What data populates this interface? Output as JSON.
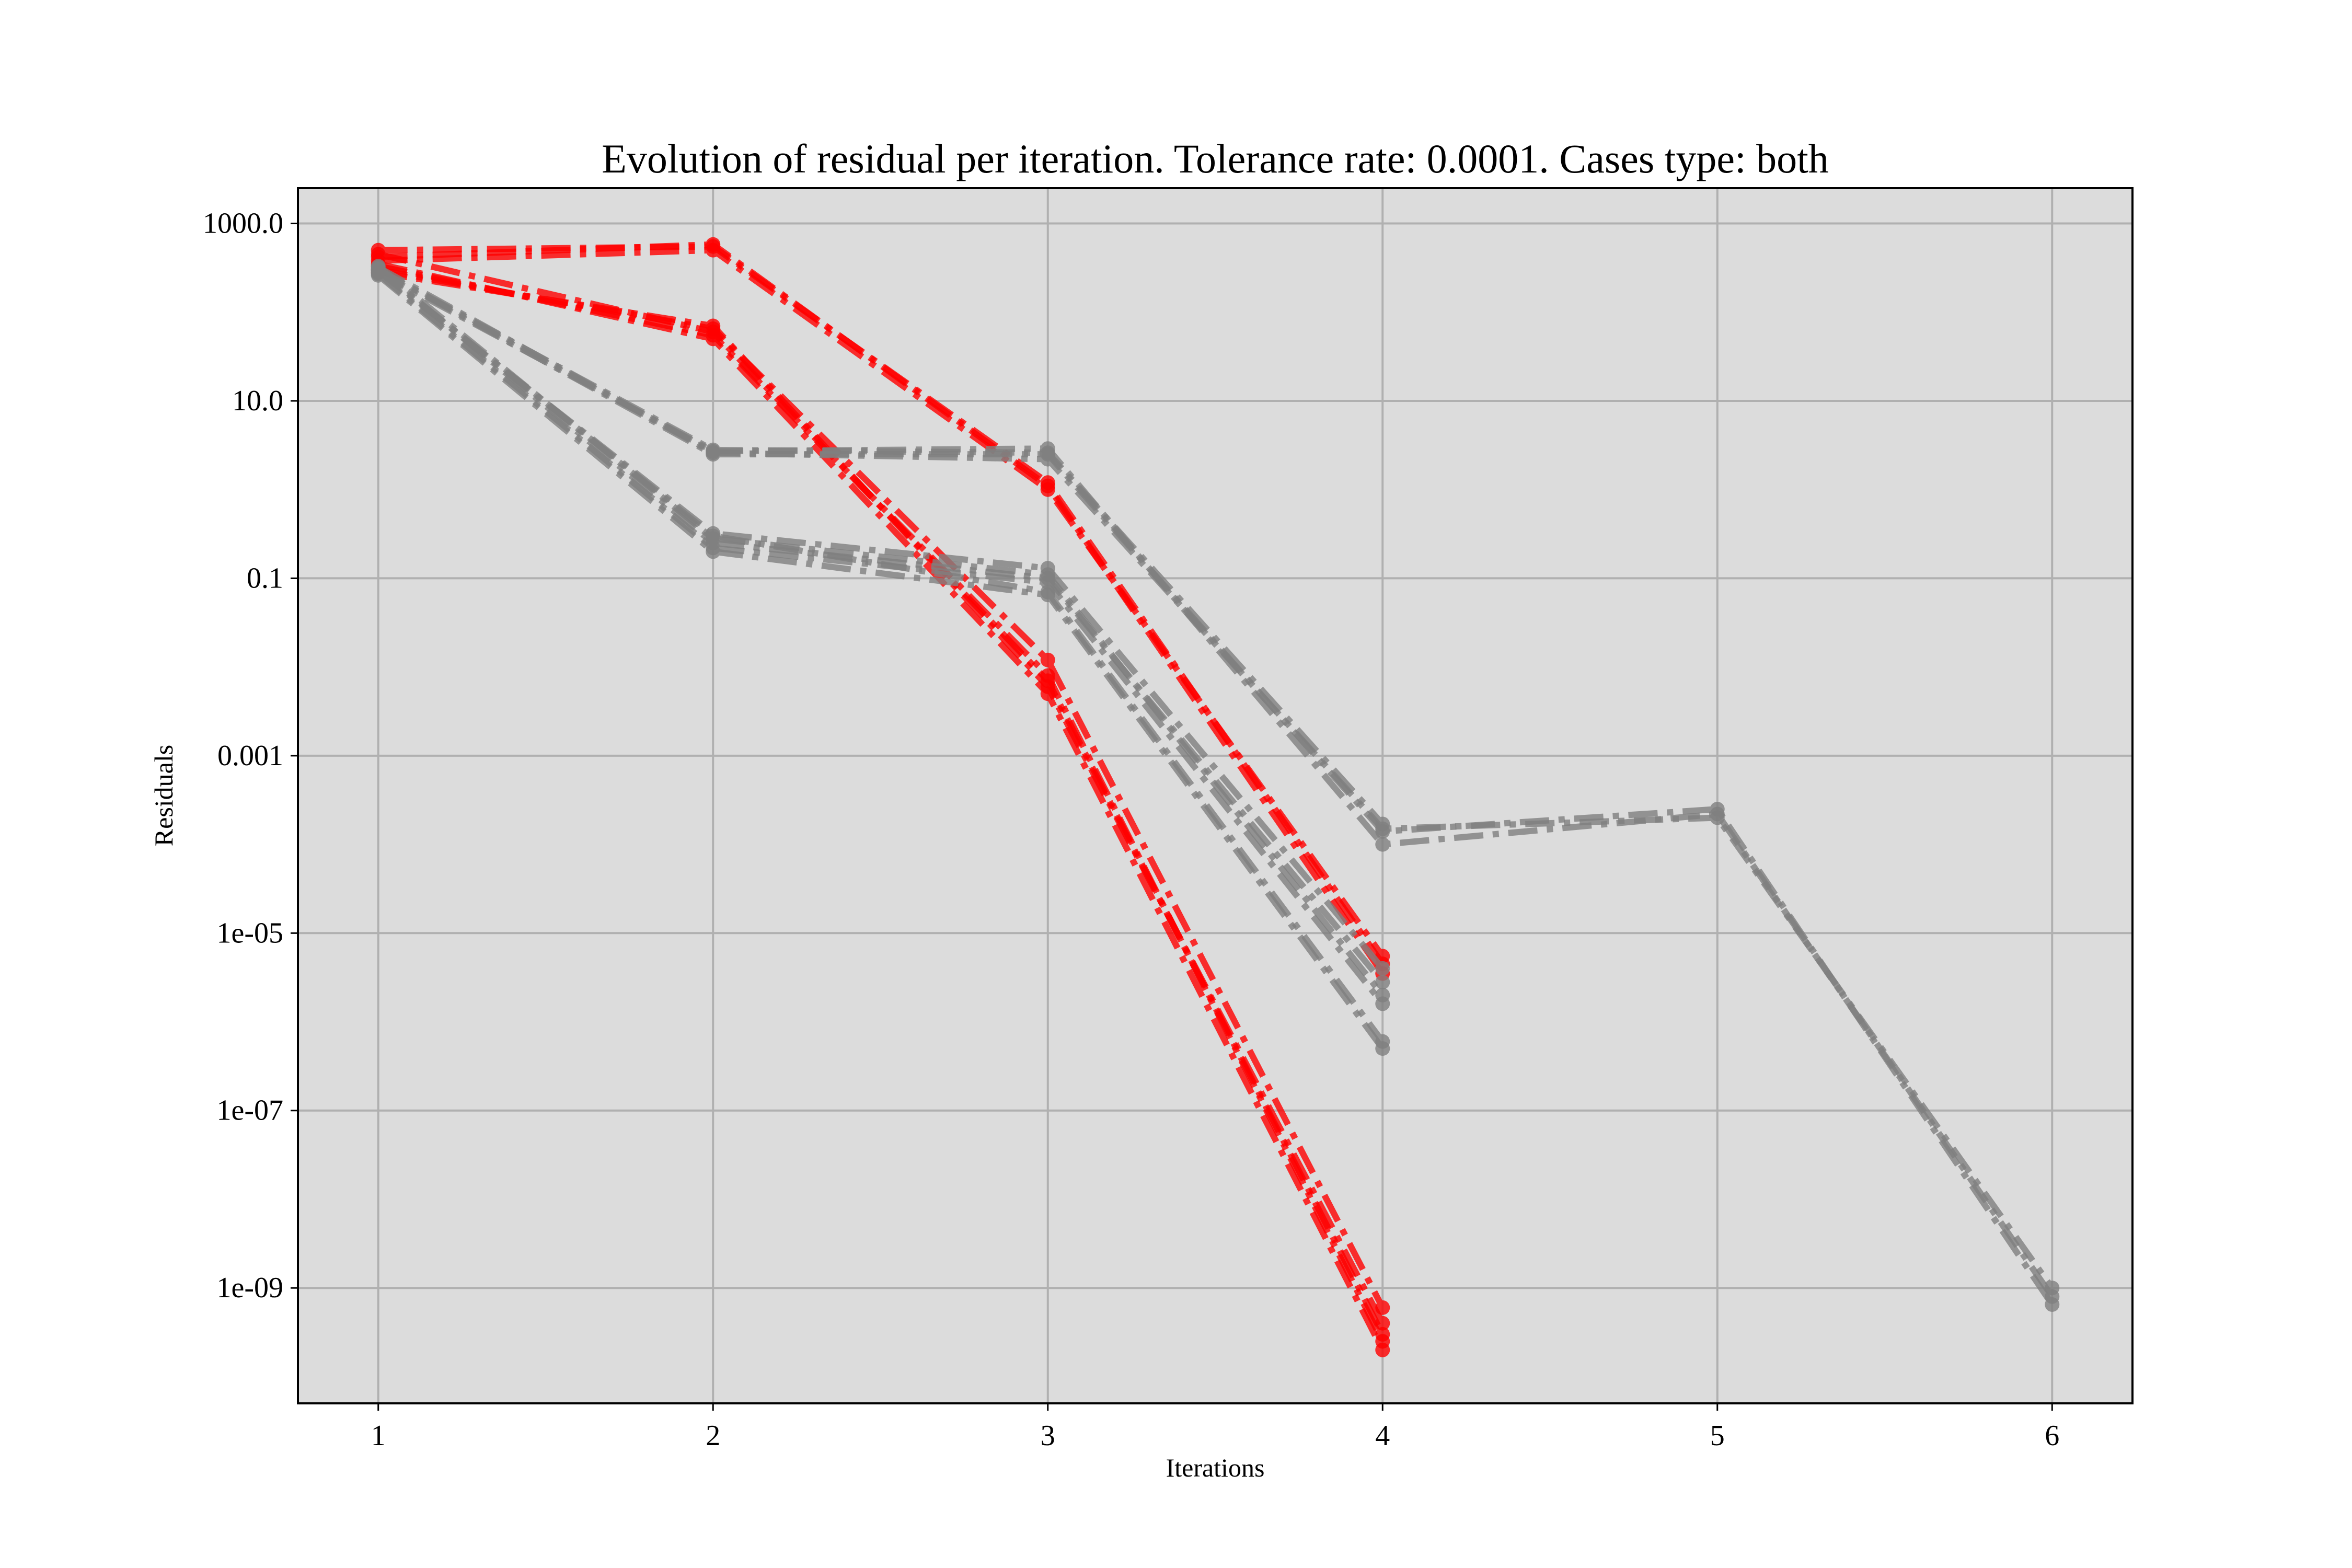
{
  "chart_data": {
    "type": "line",
    "title": "Evolution of residual per iteration. Tolerance rate: 0.0001. Cases type: both",
    "xlabel": "Iterations",
    "ylabel": "Residuals",
    "x_ticks": [
      1,
      2,
      3,
      4,
      5,
      6
    ],
    "x_tick_labels": [
      "1",
      "2",
      "3",
      "4",
      "5",
      "6"
    ],
    "xlim": [
      0.76,
      6.24
    ],
    "y_scale": "log",
    "y_ticks": [
      1000.0,
      10.0,
      0.1,
      0.001,
      1e-05,
      1e-07,
      1e-09
    ],
    "y_tick_labels": [
      "1000.0",
      "10.0",
      "0.1",
      "0.001",
      "1e-05",
      "1e-07",
      "1e-09"
    ],
    "ylim": [
      5e-11,
      2500
    ],
    "grid": true,
    "legend": "none",
    "plot_background": "#dcdcdc",
    "line_style": "dash-dot with circle markers",
    "colors": {
      "highlight": "#ff0000",
      "base": "#808080"
    },
    "series": [
      {
        "color": "#ff0000",
        "x": [
          1,
          2,
          3,
          4
        ],
        "y": [
          500,
          550,
          1.2,
          4.5e-06
        ]
      },
      {
        "color": "#ff0000",
        "x": [
          1,
          2,
          3,
          4
        ],
        "y": [
          420,
          580,
          1.1,
          3.5e-06
        ]
      },
      {
        "color": "#ff0000",
        "x": [
          1,
          2,
          3,
          4
        ],
        "y": [
          380,
          500,
          1.0,
          5.5e-06
        ]
      },
      {
        "color": "#ff0000",
        "x": [
          1,
          2,
          3,
          4
        ],
        "y": [
          300,
          65,
          0.012,
          6e-10
        ]
      },
      {
        "color": "#ff0000",
        "x": [
          1,
          2,
          3,
          4
        ],
        "y": [
          330,
          55,
          0.008,
          2.5e-10
        ]
      },
      {
        "color": "#ff0000",
        "x": [
          1,
          2,
          3,
          4
        ],
        "y": [
          280,
          70,
          0.006,
          4e-10
        ]
      },
      {
        "color": "#ff0000",
        "x": [
          1,
          2,
          3,
          4
        ],
        "y": [
          350,
          50,
          0.005,
          2e-10
        ]
      },
      {
        "color": "#ff0000",
        "x": [
          1,
          2,
          3,
          4
        ],
        "y": [
          450,
          60,
          0.007,
          3e-10
        ]
      },
      {
        "color": "#808080",
        "x": [
          1,
          2,
          3,
          4
        ],
        "y": [
          300,
          2.8,
          2.6,
          0.00017
        ]
      },
      {
        "color": "#808080",
        "x": [
          1,
          2,
          3,
          4,
          5,
          6
        ],
        "y": [
          320,
          2.6,
          2.2,
          0.00015,
          0.0002,
          1e-09
        ]
      },
      {
        "color": "#808080",
        "x": [
          1,
          2,
          3,
          4,
          5,
          6
        ],
        "y": [
          280,
          2.7,
          2.9,
          0.0001,
          0.00022,
          8e-10
        ]
      },
      {
        "color": "#808080",
        "x": [
          1,
          2,
          3,
          4,
          5,
          6
        ],
        "y": [
          300,
          2.5,
          2.5,
          0.00014,
          0.00025,
          6.5e-10
        ]
      },
      {
        "color": "#808080",
        "x": [
          1,
          2,
          3,
          4
        ],
        "y": [
          290,
          0.32,
          0.13,
          4e-06
        ]
      },
      {
        "color": "#808080",
        "x": [
          1,
          2,
          3,
          4
        ],
        "y": [
          310,
          0.25,
          0.1,
          2.8e-06
        ]
      },
      {
        "color": "#808080",
        "x": [
          1,
          2,
          3,
          4
        ],
        "y": [
          270,
          0.22,
          0.09,
          1.6e-06
        ]
      },
      {
        "color": "#808080",
        "x": [
          1,
          2,
          3,
          4
        ],
        "y": [
          300,
          0.3,
          0.07,
          6e-07
        ]
      },
      {
        "color": "#808080",
        "x": [
          1,
          2,
          3,
          4
        ],
        "y": [
          260,
          0.2,
          0.065,
          5e-07
        ]
      },
      {
        "color": "#808080",
        "x": [
          1,
          2,
          3,
          4
        ],
        "y": [
          330,
          0.28,
          0.11,
          2e-06
        ]
      }
    ]
  }
}
